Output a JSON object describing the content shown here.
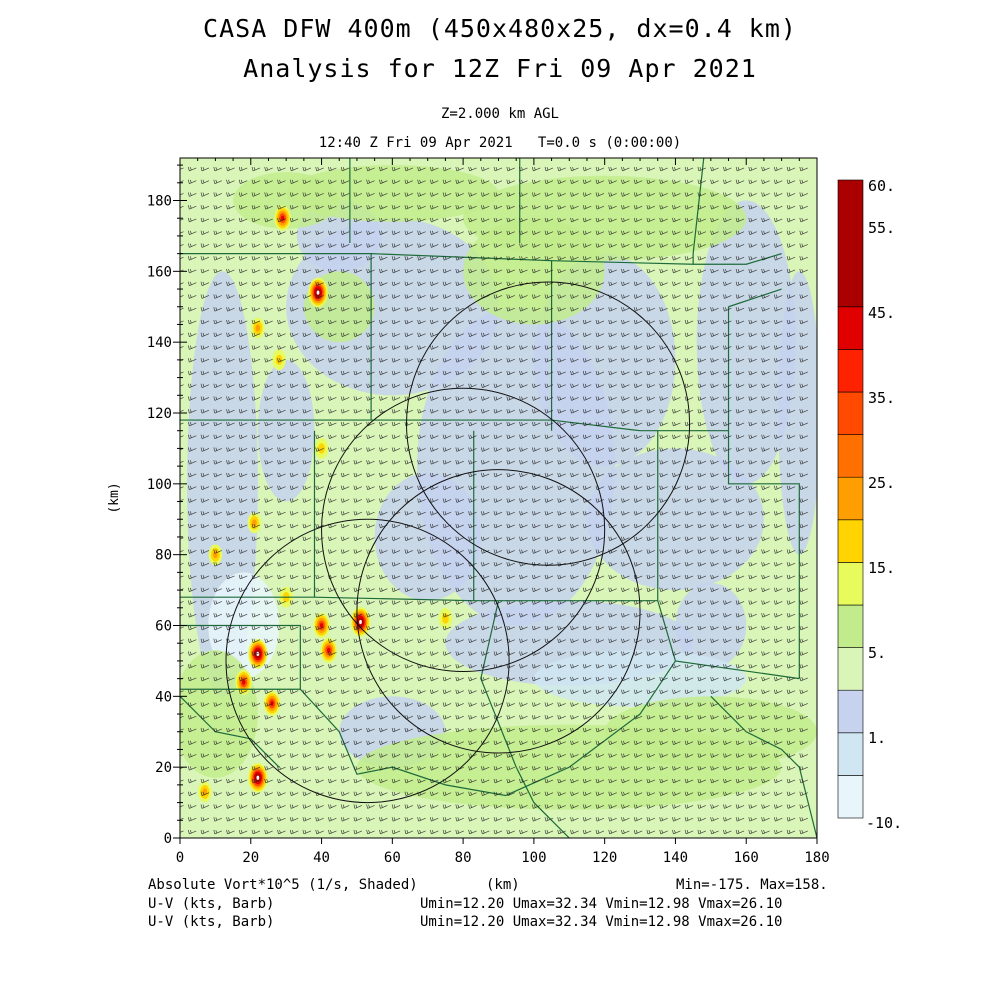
{
  "titles": {
    "line1": "CASA DFW 400m (450x480x25, dx=0.4 km)",
    "line2": "Analysis for 12Z Fri 09 Apr 2021",
    "level": "Z=2.000 km AGL",
    "time": "12:40 Z Fri 09 Apr 2021   T=0.0 s (0:00:00)"
  },
  "footer": {
    "field_label": "Absolute Vort*10^5 (1/s, Shaded)",
    "xunit": "(km)",
    "minmax": "Min=-175. Max=158.",
    "barb_label_1": "U-V (kts, Barb)",
    "barb_label_2": "U-V (kts, Barb)",
    "barb_stats_1": "Umin=12.20 Umax=32.34 Vmin=12.98 Vmax=26.10",
    "barb_stats_2": "Umin=12.20 Umax=32.34 Vmin=12.98 Vmax=26.10"
  },
  "chart_data": {
    "type": "heatmap",
    "xlabel": "",
    "ylabel": "(km)",
    "xlim": [
      0,
      180
    ],
    "ylim": [
      0,
      192
    ],
    "x_ticks": [
      0,
      20,
      40,
      60,
      80,
      100,
      120,
      140,
      160,
      180
    ],
    "y_ticks": [
      0,
      20,
      40,
      60,
      80,
      100,
      120,
      140,
      160,
      180
    ],
    "colorbar": {
      "labels": [
        "60.",
        "55.",
        "45.",
        "35.",
        "25.",
        "15.",
        "5.",
        "1.",
        "-10."
      ],
      "colors": [
        "#e8f6fb",
        "#d0e6f2",
        "#c6d2ee",
        "#d9f5b8",
        "#c2ec8c",
        "#e7fb5c",
        "#ffd400",
        "#ff9e00",
        "#ff7000",
        "#ff4a00",
        "#ff2200",
        "#e00000",
        "#aa0000"
      ]
    },
    "radar_circles_km": [
      {
        "cx": 104,
        "cy": 117,
        "r": 40
      },
      {
        "cx": 80,
        "cy": 87,
        "r": 40
      },
      {
        "cx": 90,
        "cy": 64,
        "r": 40
      },
      {
        "cx": 53,
        "cy": 50,
        "r": 40
      }
    ],
    "vorticity_maxima_km": [
      {
        "x": 29,
        "y": 175,
        "level": "high"
      },
      {
        "x": 39,
        "y": 154,
        "level": "extreme"
      },
      {
        "x": 22,
        "y": 144,
        "level": "moderate"
      },
      {
        "x": 28,
        "y": 135,
        "level": "low"
      },
      {
        "x": 40,
        "y": 110,
        "level": "low"
      },
      {
        "x": 21,
        "y": 89,
        "level": "moderate"
      },
      {
        "x": 10,
        "y": 80,
        "level": "moderate"
      },
      {
        "x": 30,
        "y": 68,
        "level": "low"
      },
      {
        "x": 51,
        "y": 61,
        "level": "extreme"
      },
      {
        "x": 40,
        "y": 60,
        "level": "high"
      },
      {
        "x": 42,
        "y": 53,
        "level": "high"
      },
      {
        "x": 22,
        "y": 52,
        "level": "extreme"
      },
      {
        "x": 18,
        "y": 44,
        "level": "high"
      },
      {
        "x": 26,
        "y": 38,
        "level": "high"
      },
      {
        "x": 22,
        "y": 17,
        "level": "extreme"
      },
      {
        "x": 7,
        "y": 13,
        "level": "moderate"
      },
      {
        "x": 75,
        "y": 62,
        "level": "low"
      }
    ],
    "wind": {
      "u_kts": [
        12.2,
        32.34
      ],
      "v_kts": [
        12.98,
        26.1
      ],
      "direction": "southwesterly"
    }
  }
}
